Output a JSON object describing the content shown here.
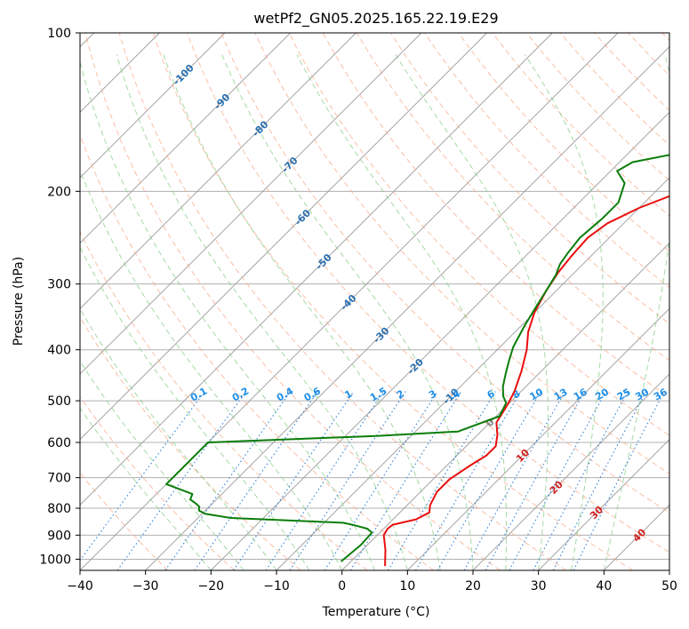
{
  "chart_data": {
    "type": "line",
    "title": "wetPf2_GN05.2025.165.22.19.E29",
    "xlabel": "Temperature (°C)",
    "ylabel": "Pressure (hPa)",
    "xlim": [
      -40,
      50
    ],
    "ylim": [
      1050,
      100
    ],
    "y_scale": "log",
    "x_ticks": [
      -40,
      -30,
      -20,
      -10,
      0,
      10,
      20,
      30,
      40,
      50
    ],
    "y_ticks": [
      100,
      200,
      300,
      400,
      500,
      600,
      700,
      800,
      900,
      1000
    ],
    "grid": true,
    "colors": {
      "temperature": "#e8100f",
      "dewpoint": "#0a7d0a",
      "isotherm": "#9a9a9a",
      "dry_adiabat": "#f7a988",
      "moist_adiabat": "#8fcf8f",
      "mixing_ratio": "#2f7fd6",
      "isotherm_label_cold": "#2a6fb0",
      "isotherm_label_warm": "#d22020",
      "isotherm_label_zero": "#808080",
      "mixing_label": "#1f8fe8"
    },
    "isotherm_labels": [
      {
        "text": "-100",
        "value": -100
      },
      {
        "text": "-90",
        "value": -90
      },
      {
        "text": "-80",
        "value": -80
      },
      {
        "text": "-70",
        "value": -70
      },
      {
        "text": "-60",
        "value": -60
      },
      {
        "text": "-50",
        "value": -50
      },
      {
        "text": "-40",
        "value": -40
      },
      {
        "text": "-30",
        "value": -30
      },
      {
        "text": "-20",
        "value": -20
      },
      {
        "text": "-10",
        "value": -10
      },
      {
        "text": "0",
        "value": 0
      },
      {
        "text": "10",
        "value": 10
      },
      {
        "text": "20",
        "value": 20
      },
      {
        "text": "30",
        "value": 30
      },
      {
        "text": "40",
        "value": 40
      }
    ],
    "mixing_ratio_labels": [
      "0.1",
      "0.2",
      "0.4",
      "0.6",
      "1",
      "1.5",
      "2",
      "3",
      "4",
      "6",
      "8",
      "10",
      "13",
      "16",
      "20",
      "25",
      "30",
      "36"
    ],
    "series": [
      {
        "name": "",
        "role": "temperature",
        "points": [
          [
            5.9,
            1030
          ],
          [
            3.5,
            960
          ],
          [
            1.0,
            900
          ],
          [
            0.6,
            875
          ],
          [
            0.8,
            860
          ],
          [
            3.5,
            840
          ],
          [
            4.5,
            815
          ],
          [
            3.5,
            790
          ],
          [
            2.5,
            745
          ],
          [
            2.5,
            705
          ],
          [
            3.5,
            665
          ],
          [
            4.5,
            635
          ],
          [
            4.5,
            610
          ],
          [
            3.0,
            580
          ],
          [
            1.0,
            550
          ],
          [
            0.0,
            510
          ],
          [
            -1.0,
            480
          ],
          [
            -3.0,
            440
          ],
          [
            -5.5,
            400
          ],
          [
            -8.0,
            370
          ],
          [
            -10.0,
            340
          ],
          [
            -11.5,
            310
          ],
          [
            -12.5,
            285
          ],
          [
            -13.0,
            265
          ],
          [
            -13.3,
            245
          ],
          [
            -12.5,
            230
          ],
          [
            -10.0,
            215
          ],
          [
            -6.0,
            200
          ],
          [
            -2.5,
            185
          ],
          [
            2.5,
            170
          ],
          [
            10.0,
            150
          ],
          [
            18.0,
            130
          ],
          [
            23.0,
            115
          ],
          [
            25.5,
            108
          ],
          [
            28.0,
            100
          ]
        ]
      },
      {
        "name": "",
        "role": "dewpoint",
        "points": [
          [
            -1.5,
            1010
          ],
          [
            -1.0,
            940
          ],
          [
            -1.2,
            890
          ],
          [
            -2.5,
            875
          ],
          [
            -5.0,
            862
          ],
          [
            -7.0,
            853
          ],
          [
            -25.0,
            835
          ],
          [
            -29.5,
            820
          ],
          [
            -31.0,
            808
          ],
          [
            -31.5,
            795
          ],
          [
            -32.5,
            784
          ],
          [
            -34.0,
            770
          ],
          [
            -34.5,
            752
          ],
          [
            -40.0,
            720
          ],
          [
            -40.0,
            600
          ],
          [
            -15.0,
            583
          ],
          [
            -3.5,
            572
          ],
          [
            0.5,
            535
          ],
          [
            -0.5,
            505
          ],
          [
            -2.0,
            490
          ],
          [
            -3.5,
            470
          ],
          [
            -5.0,
            445
          ],
          [
            -6.5,
            420
          ],
          [
            -8.0,
            395
          ],
          [
            -9.5,
            360
          ],
          [
            -10.5,
            335
          ],
          [
            -11.5,
            310
          ],
          [
            -12.5,
            288
          ],
          [
            -13.5,
            275
          ],
          [
            -14.0,
            262
          ],
          [
            -14.5,
            245
          ],
          [
            -14.0,
            225
          ],
          [
            -14.0,
            210
          ],
          [
            -16.0,
            193
          ],
          [
            -19.0,
            183
          ],
          [
            -18.0,
            176
          ],
          [
            -13.0,
            170
          ],
          [
            -10.0,
            160
          ],
          [
            -8.5,
            148
          ],
          [
            -5.5,
            132
          ],
          [
            -1.5,
            120
          ],
          [
            2.0,
            112
          ],
          [
            5.0,
            105
          ],
          [
            6.5,
            100
          ]
        ]
      }
    ]
  }
}
